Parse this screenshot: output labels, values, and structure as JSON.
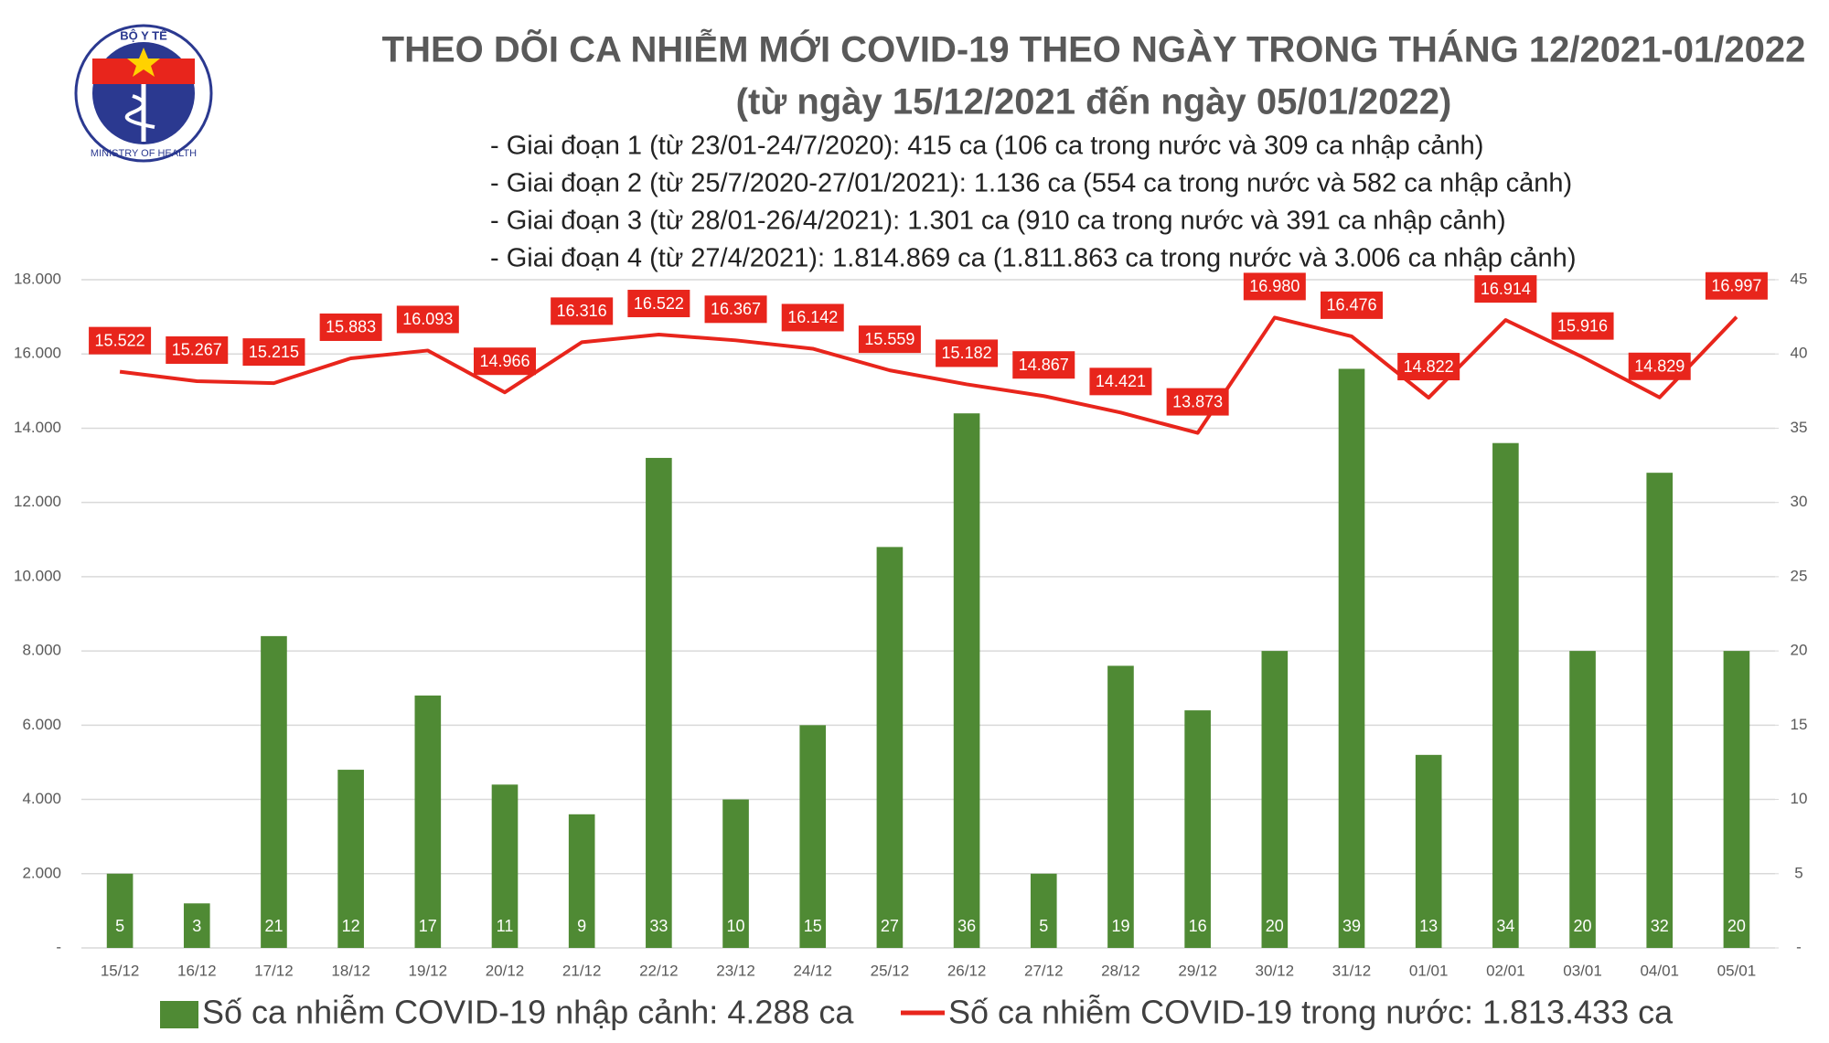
{
  "logo": {
    "top_text": "BỘ Y TẾ",
    "bottom_text": "MINISTRY OF HEALTH"
  },
  "chart_data": {
    "type": "bar_line",
    "title": "THEO DÕI CA NHIỄM MỚI COVID-19 THEO NGÀY TRONG THÁNG 12/2021-01/2022",
    "subtitle": "(từ ngày 15/12/2021 đến ngày 05/01/2022)",
    "annotations": [
      "- Giai đoạn 1 (từ 23/01-24/7/2020): 415 ca (106 ca trong nước và 309 ca nhập cảnh)",
      "- Giai đoạn 2 (từ 25/7/2020-27/01/2021): 1.136 ca (554 ca trong nước và 582 ca nhập cảnh)",
      "- Giai đoạn 3 (từ 28/01-26/4/2021): 1.301 ca (910 ca trong nước và 391 ca nhập cảnh)",
      "- Giai đoạn 4 (từ 27/4/2021): 1.814.869 ca (1.811.863 ca trong nước và 3.006 ca nhập cảnh)"
    ],
    "categories": [
      "15/12",
      "16/12",
      "17/12",
      "18/12",
      "19/12",
      "20/12",
      "21/12",
      "22/12",
      "23/12",
      "24/12",
      "25/12",
      "26/12",
      "27/12",
      "28/12",
      "29/12",
      "30/12",
      "31/12",
      "01/01",
      "02/01",
      "03/01",
      "04/01",
      "05/01"
    ],
    "series": [
      {
        "name": "Số ca nhiễm COVID-19 nhập cảnh: 4.288 ca",
        "type": "bar",
        "axis": "y2",
        "color": "#4f8a34",
        "values": [
          5,
          3,
          21,
          12,
          17,
          11,
          9,
          33,
          10,
          15,
          27,
          36,
          5,
          19,
          16,
          20,
          39,
          13,
          34,
          20,
          32,
          20
        ]
      },
      {
        "name": "Số ca nhiễm COVID-19 trong nước: 1.813.433 ca",
        "type": "line",
        "axis": "y",
        "color": "#e8251c",
        "values": [
          15522,
          15267,
          15215,
          15883,
          16093,
          14966,
          16316,
          16522,
          16367,
          16142,
          15559,
          15182,
          14867,
          14421,
          13873,
          16980,
          16476,
          14822,
          16914,
          15916,
          14829,
          16997
        ],
        "value_labels": [
          "15.522",
          "15.267",
          "15.215",
          "15.883",
          "16.093",
          "14.966",
          "16.316",
          "16.522",
          "16.367",
          "16.142",
          "15.559",
          "15.182",
          "14.867",
          "14.421",
          "13.873",
          "16.980",
          "16.476",
          "14.822",
          "16.914",
          "15.916",
          "14.829",
          "16.997"
        ]
      }
    ],
    "ylim": [
      0,
      18000
    ],
    "yticks": [
      {
        "value": 0,
        "label": "-"
      },
      {
        "value": 2000,
        "label": "2.000"
      },
      {
        "value": 4000,
        "label": "4.000"
      },
      {
        "value": 6000,
        "label": "6.000"
      },
      {
        "value": 8000,
        "label": "8.000"
      },
      {
        "value": 10000,
        "label": "10.000"
      },
      {
        "value": 12000,
        "label": "12.000"
      },
      {
        "value": 14000,
        "label": "14.000"
      },
      {
        "value": 16000,
        "label": "16.000"
      },
      {
        "value": 18000,
        "label": "18.000"
      }
    ],
    "y2lim": [
      0,
      45
    ],
    "y2ticks": [
      {
        "value": 0,
        "label": "-"
      },
      5,
      10,
      15,
      20,
      25,
      30,
      35,
      40,
      45
    ],
    "grid": true,
    "legend": "bottom"
  }
}
